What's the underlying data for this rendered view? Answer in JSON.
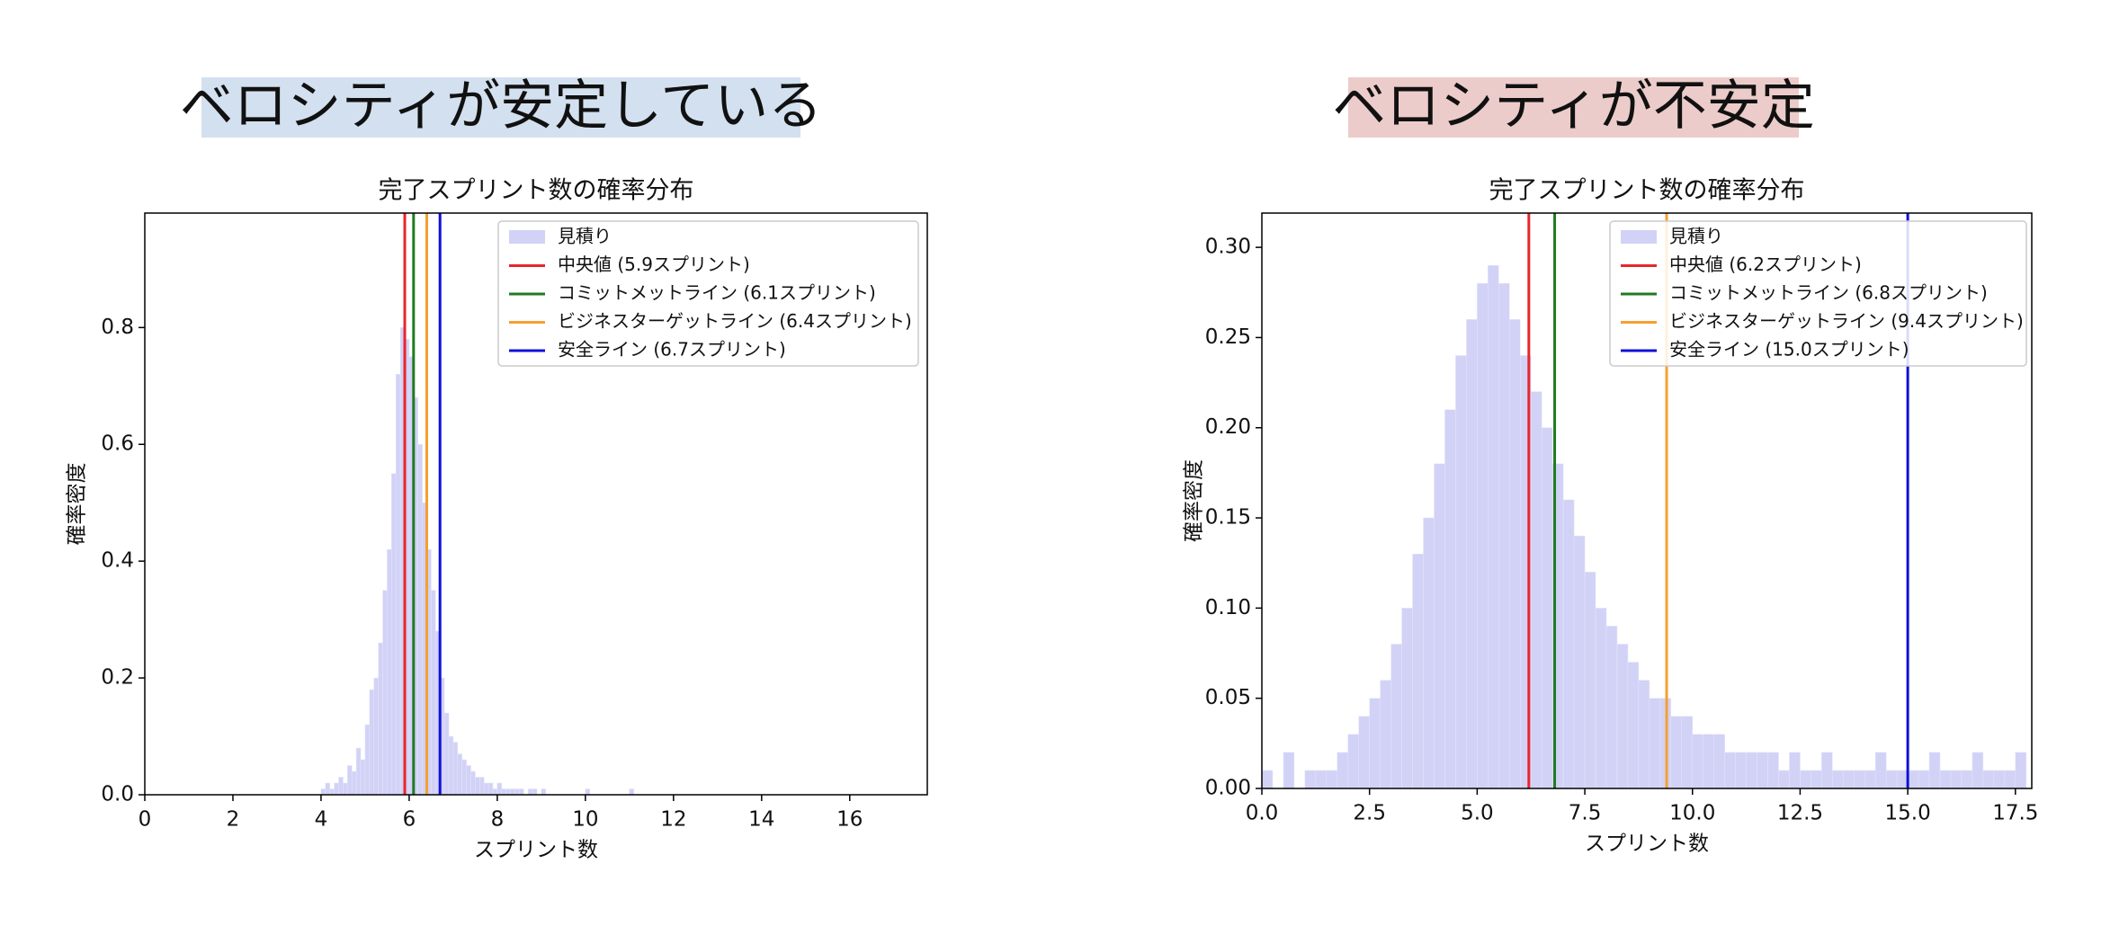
{
  "chart_data": [
    {
      "type": "histogram",
      "panel_title": "ベロシティが安定している",
      "title": "完了スプリント数の確率分布",
      "xlabel": "スプリント数",
      "ylabel": "確率密度",
      "xlim": [
        0,
        17.76
      ],
      "ylim": [
        0,
        0.996
      ],
      "xticks": [
        0,
        2,
        4,
        6,
        8,
        10,
        12,
        14,
        16
      ],
      "yticks": [
        {
          "value": 0,
          "label": "0.0"
        },
        0.2,
        0.4,
        0.6,
        0.8
      ],
      "legend": "upper right",
      "series": [
        {
          "name": "見積り",
          "color": "#d2d2f7",
          "bins": [
            4.0,
            4.1,
            4.2,
            4.3,
            4.4,
            4.5,
            4.6,
            4.7,
            4.8,
            4.9,
            5.0,
            5.1,
            5.2,
            5.3,
            5.4,
            5.5,
            5.6,
            5.7,
            5.8,
            5.9,
            6.0,
            6.1,
            6.2,
            6.3,
            6.4,
            6.5,
            6.6,
            6.7,
            6.8,
            6.9,
            7.0,
            7.1,
            7.2,
            7.3,
            7.4,
            7.5,
            7.6,
            7.7,
            7.8,
            7.9,
            8.0,
            8.1,
            8.2,
            8.3,
            8.4,
            8.5,
            8.6,
            8.7,
            8.8,
            8.9,
            9.0,
            9.1,
            9.2,
            9.3,
            9.4,
            9.5,
            9.6,
            9.7,
            9.8,
            9.9,
            10.0,
            10.1,
            10.2,
            10.3,
            10.4,
            10.5,
            10.6,
            10.7,
            10.8,
            10.9,
            11.0,
            11.1
          ],
          "values": [
            0.01,
            0.02,
            0.01,
            0.02,
            0.03,
            0.02,
            0.05,
            0.04,
            0.08,
            0.06,
            0.12,
            0.18,
            0.2,
            0.26,
            0.35,
            0.42,
            0.55,
            0.72,
            0.8,
            0.78,
            0.75,
            0.68,
            0.6,
            0.5,
            0.42,
            0.35,
            0.28,
            0.2,
            0.14,
            0.1,
            0.09,
            0.07,
            0.06,
            0.05,
            0.04,
            0.03,
            0.03,
            0.02,
            0.02,
            0.01,
            0.02,
            0.01,
            0.01,
            0.01,
            0.01,
            0.01,
            0,
            0.01,
            0.01,
            0,
            0.01,
            0,
            0,
            0,
            0,
            0,
            0,
            0,
            0,
            0,
            0.01,
            0,
            0,
            0,
            0,
            0,
            0,
            0,
            0,
            0,
            0.01
          ]
        }
      ],
      "lines": [
        {
          "name": "中央値 (5.9スプリント)",
          "value": 5.9,
          "color": "#e8262b"
        },
        {
          "name": "コミットメットライン (6.1スプリント)",
          "value": 6.1,
          "color": "#217a21"
        },
        {
          "name": "ビジネスターゲットライン (6.4スプリント)",
          "value": 6.4,
          "color": "#f5a030"
        },
        {
          "name": "安全ライン (6.7スプリント)",
          "value": 6.7,
          "color": "#1010d8"
        }
      ]
    },
    {
      "type": "histogram",
      "panel_title": "ベロシティが不安定",
      "title": "完了スプリント数の確率分布",
      "xlabel": "スプリント数",
      "ylabel": "確率密度",
      "xlim": [
        0,
        17.88
      ],
      "ylim": [
        0,
        0.319
      ],
      "xticks": [
        {
          "value": 0,
          "label": "0.0"
        },
        2.5,
        {
          "value": 5,
          "label": "5.0"
        },
        7.5,
        {
          "value": 10,
          "label": "10.0"
        },
        12.5,
        {
          "value": 15,
          "label": "15.0"
        },
        17.5
      ],
      "yticks": [
        {
          "value": 0,
          "label": "0.00"
        },
        {
          "value": 0.05,
          "label": "0.05"
        },
        {
          "value": 0.1,
          "label": "0.10"
        },
        {
          "value": 0.15,
          "label": "0.15"
        },
        {
          "value": 0.2,
          "label": "0.20"
        },
        {
          "value": 0.25,
          "label": "0.25"
        },
        {
          "value": 0.3,
          "label": "0.30"
        }
      ],
      "legend": "upper right",
      "series": [
        {
          "name": "見積り",
          "color": "#d2d2f7",
          "bins": [
            0,
            0.25,
            0.5,
            0.75,
            1,
            1.25,
            1.5,
            1.75,
            2,
            2.25,
            2.5,
            2.75,
            3,
            3.25,
            3.5,
            3.75,
            4,
            4.25,
            4.5,
            4.75,
            5,
            5.25,
            5.5,
            5.75,
            6,
            6.25,
            6.5,
            6.75,
            7,
            7.25,
            7.5,
            7.75,
            8,
            8.25,
            8.5,
            8.75,
            9,
            9.25,
            9.5,
            9.75,
            10,
            10.25,
            10.5,
            10.75,
            11,
            11.25,
            11.5,
            11.75,
            12,
            12.25,
            12.5,
            12.75,
            13,
            13.25,
            13.5,
            13.75,
            14,
            14.25,
            14.5,
            14.75,
            15,
            15.25,
            15.5,
            15.75,
            16,
            16.25,
            16.5,
            16.75,
            17,
            17.25,
            17.5,
            17.75
          ],
          "values": [
            0.01,
            0,
            0.02,
            0,
            0.01,
            0.01,
            0.01,
            0.02,
            0.03,
            0.04,
            0.05,
            0.06,
            0.08,
            0.1,
            0.13,
            0.15,
            0.18,
            0.21,
            0.24,
            0.26,
            0.28,
            0.29,
            0.28,
            0.26,
            0.24,
            0.22,
            0.2,
            0.18,
            0.16,
            0.14,
            0.12,
            0.1,
            0.09,
            0.08,
            0.07,
            0.06,
            0.05,
            0.05,
            0.04,
            0.04,
            0.03,
            0.03,
            0.03,
            0.02,
            0.02,
            0.02,
            0.02,
            0.02,
            0.01,
            0.02,
            0.01,
            0.01,
            0.02,
            0.01,
            0.01,
            0.01,
            0.01,
            0.02,
            0.01,
            0.01,
            0.01,
            0.01,
            0.02,
            0.01,
            0.01,
            0.01,
            0.02,
            0.01,
            0.01,
            0.01,
            0.02
          ]
        }
      ],
      "lines": [
        {
          "name": "中央値 (6.2スプリント)",
          "value": 6.2,
          "color": "#e8262b"
        },
        {
          "name": "コミットメットライン (6.8スプリント)",
          "value": 6.8,
          "color": "#217a21"
        },
        {
          "name": "ビジネスターゲットライン (9.4スプリント)",
          "value": 9.4,
          "color": "#f5a030"
        },
        {
          "name": "安全ライン (15.0スプリント)",
          "value": 15,
          "color": "#1010d8"
        }
      ]
    }
  ]
}
